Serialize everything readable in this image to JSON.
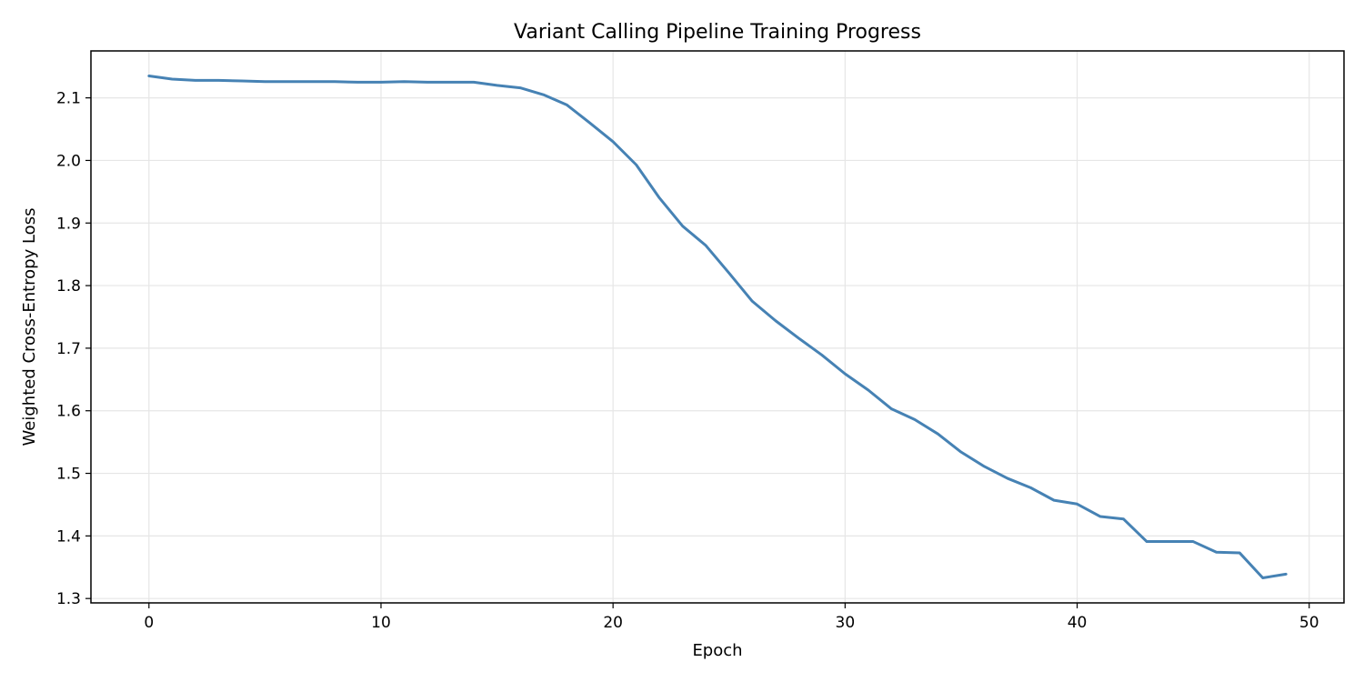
{
  "chart_data": {
    "type": "line",
    "title": "Variant Calling Pipeline Training Progress",
    "xlabel": "Epoch",
    "ylabel": "Weighted Cross-Entropy Loss",
    "xlim": [
      -2.5,
      51.5
    ],
    "ylim": [
      1.293,
      2.175
    ],
    "xticks": [
      0,
      10,
      20,
      30,
      40,
      50
    ],
    "xtick_labels": [
      "0",
      "10",
      "20",
      "30",
      "40",
      "50"
    ],
    "yticks": [
      1.3,
      1.4,
      1.5,
      1.6,
      1.7,
      1.8,
      1.9,
      2.0,
      2.1
    ],
    "ytick_labels": [
      "1.3",
      "1.4",
      "1.5",
      "1.6",
      "1.7",
      "1.8",
      "1.9",
      "2.0",
      "2.1"
    ],
    "grid": true,
    "series": [
      {
        "color": "#4682b4",
        "x": [
          0,
          1,
          2,
          3,
          4,
          5,
          6,
          7,
          8,
          9,
          10,
          11,
          12,
          13,
          14,
          15,
          16,
          17,
          18,
          19,
          20,
          21,
          22,
          23,
          24,
          25,
          26,
          27,
          28,
          29,
          30,
          31,
          32,
          33,
          34,
          35,
          36,
          37,
          38,
          39,
          40,
          41,
          42,
          43,
          44,
          45,
          46,
          47,
          48,
          49
        ],
        "y": [
          2.135,
          2.13,
          2.128,
          2.128,
          2.127,
          2.126,
          2.126,
          2.126,
          2.126,
          2.125,
          2.125,
          2.126,
          2.125,
          2.125,
          2.125,
          2.12,
          2.116,
          2.105,
          2.089,
          2.06,
          2.03,
          1.993,
          1.94,
          1.895,
          1.864,
          1.82,
          1.775,
          1.744,
          1.716,
          1.689,
          1.659,
          1.633,
          1.603,
          1.586,
          1.563,
          1.534,
          1.511,
          1.492,
          1.477,
          1.457,
          1.451,
          1.431,
          1.427,
          1.391,
          1.391,
          1.391,
          1.374,
          1.373,
          1.333,
          1.339
        ]
      }
    ]
  }
}
